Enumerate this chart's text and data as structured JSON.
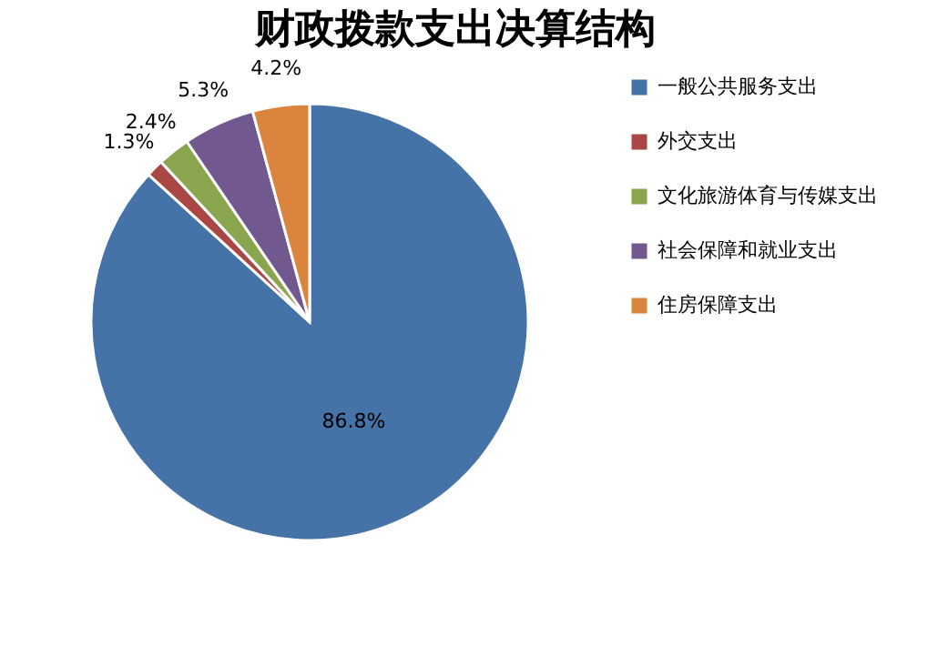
{
  "chart_data": {
    "type": "pie",
    "title": "财政拨款支出决算结构",
    "categories": [
      "一般公共服务支出",
      "外交支出",
      "文化旅游体育与传媒支出",
      "社会保障和就业支出",
      "住房保障支出"
    ],
    "values": [
      86.8,
      1.3,
      2.4,
      5.3,
      4.2
    ],
    "colors": [
      "#4572a7",
      "#aa4643",
      "#89a54e",
      "#71588f",
      "#db843d"
    ],
    "value_labels": [
      "86.8%",
      "1.3%",
      "2.4%",
      "5.3%",
      "4.2%"
    ],
    "legend": "right"
  }
}
